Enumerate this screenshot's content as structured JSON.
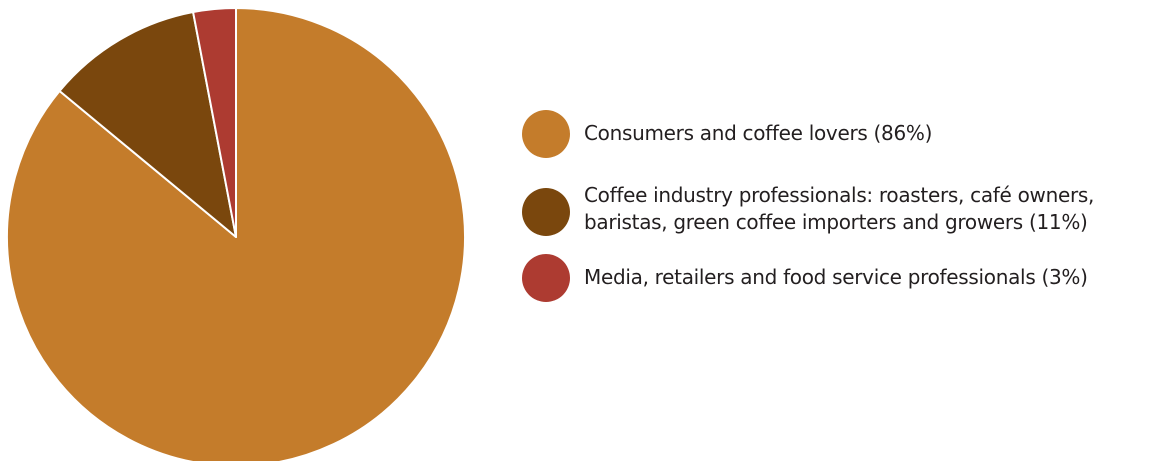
{
  "chart_data": {
    "type": "pie",
    "title": "",
    "slices": [
      {
        "label": "Consumers and coffee lovers (86%)",
        "value": 86,
        "color": "#c47c2b"
      },
      {
        "label": "Coffee industry professionals: roasters, café owners, baristas, green coffee importers and growers (11%)",
        "value": 11,
        "color": "#7a470d"
      },
      {
        "label": "Media, retailers and food service professionals (3%)",
        "value": 3,
        "color": "#ad3b31"
      }
    ],
    "start": "12 o'clock",
    "direction": "clockwise",
    "legend_position": "right"
  }
}
